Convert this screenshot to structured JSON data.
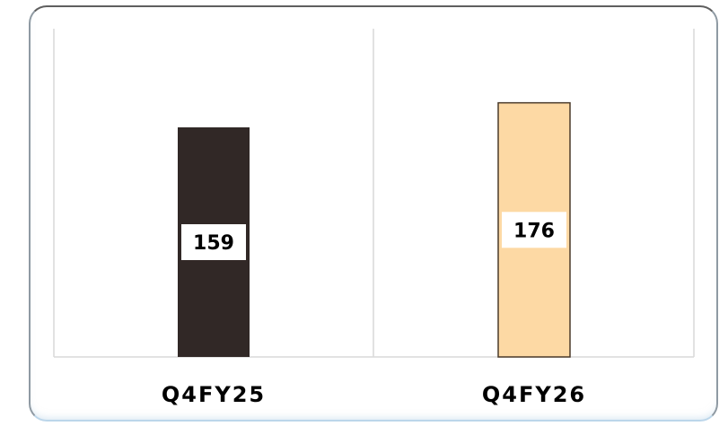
{
  "chart_data": {
    "type": "bar",
    "title": "",
    "xlabel": "",
    "ylabel": "",
    "categories": [
      "Q4FY25",
      "Q4FY26"
    ],
    "values": [
      159,
      176
    ],
    "value_labels": [
      "159",
      "176"
    ],
    "ylim": [
      0,
      200
    ],
    "grid": false,
    "legend": "none",
    "colors": [
      "#312826",
      "#fdd9a4"
    ],
    "bar_outline": "#4a3a2a",
    "gridline_color": "#d9d9d9"
  }
}
